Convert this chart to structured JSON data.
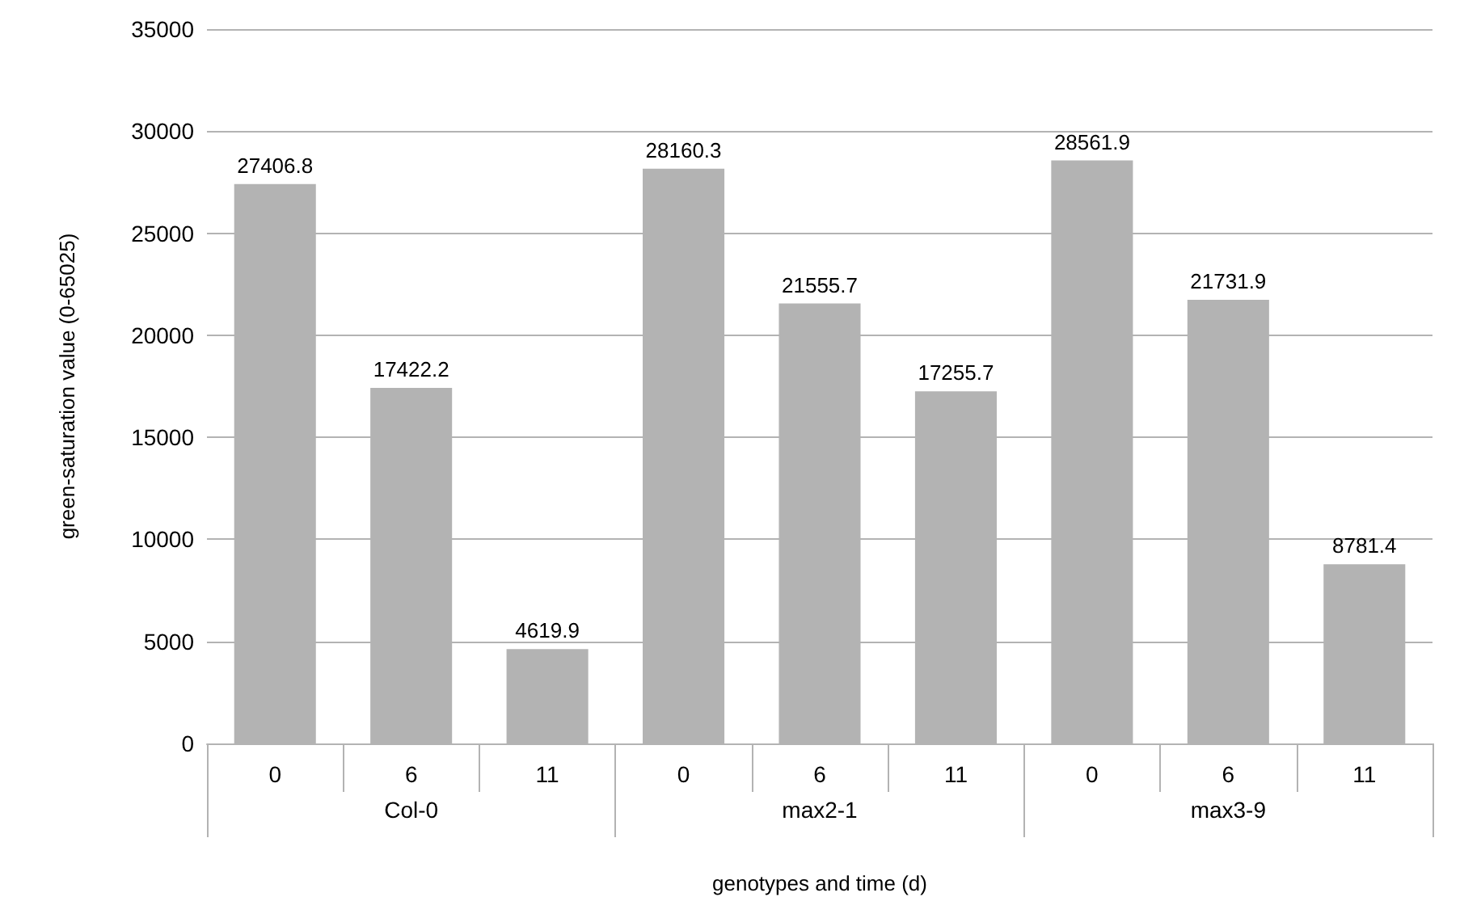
{
  "chart_data": {
    "type": "bar",
    "xlabel": "genotypes and time (d)",
    "ylabel": "green-saturation value (0-65025)",
    "categories": [
      "0",
      "6",
      "11",
      "0",
      "6",
      "11",
      "0",
      "6",
      "11"
    ],
    "values": [
      27406.8,
      17422.2,
      4619.9,
      28160.3,
      21555.7,
      17255.7,
      28561.9,
      21731.9,
      8781.4
    ],
    "color": "#b3b3b3",
    "ylim": [
      0,
      35000
    ],
    "yticks": [
      0,
      5000,
      10000,
      15000,
      20000,
      25000,
      30000,
      35000
    ],
    "grid": "y",
    "data_labels": true,
    "annotations": [
      "Col-0",
      "max2-1",
      "max3-9"
    ]
  }
}
